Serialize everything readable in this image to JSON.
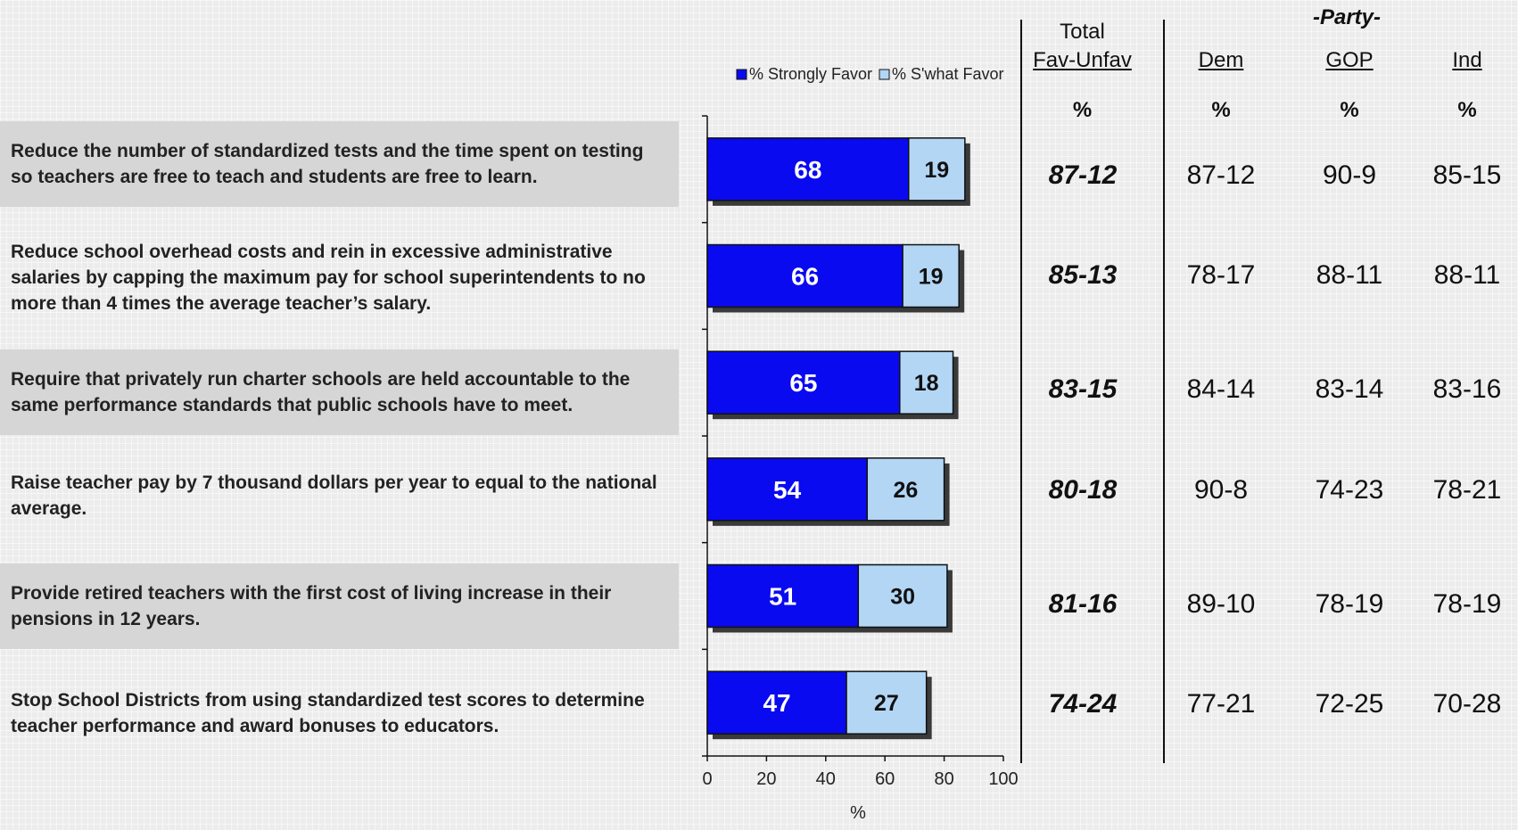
{
  "statements": [
    "Reduce the number of standardized tests and the time spent on testing so teachers are free to teach and students are free to learn.",
    "Reduce school overhead costs and rein in excessive administrative salaries by capping the maximum pay for school superintendents to no more than 4 times the average teacher’s salary.",
    "Require that privately run charter schools are held accountable to the same performance standards that public schools have to meet.",
    "Raise teacher pay by 7 thousand dollars per year to equal to the national average.",
    "Provide retired teachers with the first cost of living increase in their pensions in 12 years.",
    "Stop School Districts from using standardized test scores to determine teacher performance and award bonuses to educators."
  ],
  "headers": {
    "total_line1": "Total",
    "total_line2": "Fav-Unfav",
    "party": "-Party-",
    "dem": "Dem",
    "gop": "GOP",
    "ind": "Ind",
    "pct": "%"
  },
  "rows": [
    {
      "total": "87-12",
      "dem": "87-12",
      "gop": "90-9",
      "ind": "85-15"
    },
    {
      "total": "85-13",
      "dem": "78-17",
      "gop": "88-11",
      "ind": "88-11"
    },
    {
      "total": "83-15",
      "dem": "84-14",
      "gop": "83-14",
      "ind": "83-16"
    },
    {
      "total": "80-18",
      "dem": "90-8",
      "gop": "74-23",
      "ind": "78-21"
    },
    {
      "total": "81-16",
      "dem": "89-10",
      "gop": "78-19",
      "ind": "78-19"
    },
    {
      "total": "74-24",
      "dem": "77-21",
      "gop": "72-25",
      "ind": "70-28"
    }
  ],
  "colors": {
    "strong": "#0a0af0",
    "somewhat": "#b3d6f5",
    "outline": "#111111",
    "shadow": "#3a3a3a"
  },
  "chart_data": {
    "type": "bar",
    "orientation": "horizontal",
    "stacked": true,
    "categories": [
      "Reduce the number of standardized tests and the time spent on testing so teachers are free to teach and students are free to learn.",
      "Reduce school overhead costs and rein in excessive administrative salaries by capping the maximum pay for school superintendents to no more than 4 times the average teacher’s salary.",
      "Require that privately run charter schools are held accountable to the same performance standards that public schools have to meet.",
      "Raise teacher pay by 7 thousand dollars per year to equal to the national average.",
      "Provide retired teachers with the first cost of living increase in their pensions in 12 years.",
      "Stop School Districts from using standardized test scores to determine teacher performance and award bonuses to educators."
    ],
    "series": [
      {
        "name": "% Strongly Favor",
        "values": [
          68,
          66,
          65,
          54,
          51,
          47
        ]
      },
      {
        "name": "% S'what Favor",
        "values": [
          19,
          19,
          18,
          26,
          30,
          27
        ]
      }
    ],
    "xlabel": "%",
    "xlim": [
      0,
      100
    ],
    "xticks": [
      0,
      20,
      40,
      60,
      80,
      100
    ],
    "legend": "top"
  }
}
